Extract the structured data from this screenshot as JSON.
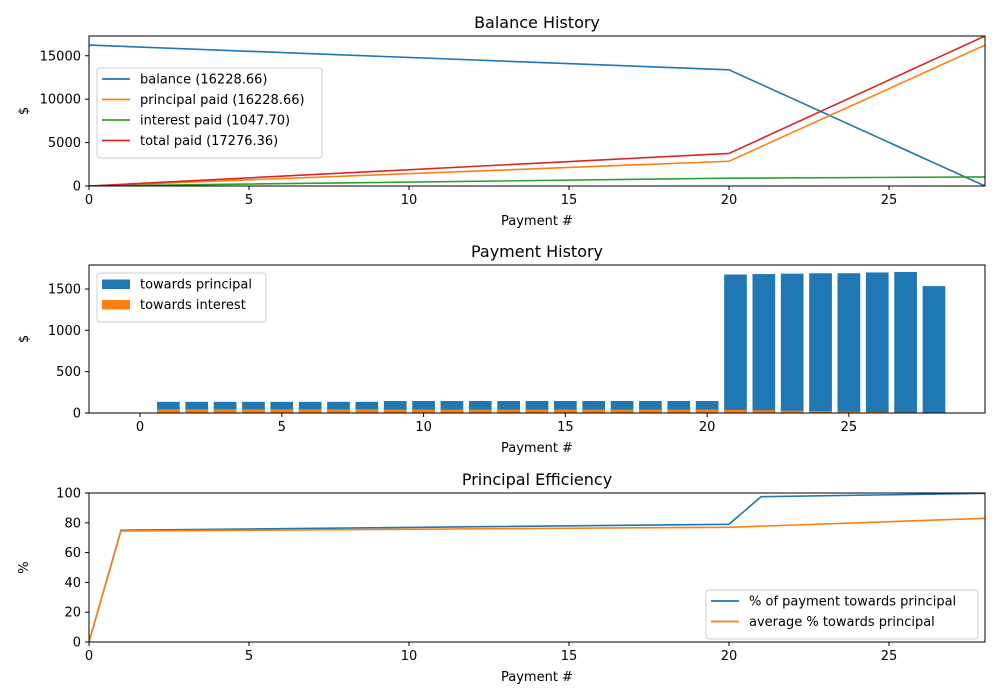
{
  "chart_data": [
    {
      "type": "line",
      "title": "Balance History",
      "xlabel": "Payment #",
      "ylabel": "$",
      "xlim": [
        0,
        28
      ],
      "ylim": [
        0,
        17276.36
      ],
      "xticks": [
        0,
        5,
        10,
        15,
        20,
        25
      ],
      "yticks": [
        0,
        5000,
        10000,
        15000
      ],
      "legend_position": "upper-left-middle",
      "series": [
        {
          "name": "balance (16228.66)",
          "color": "#1f77b4",
          "x": [
            0,
            20,
            28
          ],
          "y": [
            16228.66,
            13380,
            0
          ]
        },
        {
          "name": "principal paid (16228.66)",
          "color": "#ff7f0e",
          "x": [
            0,
            20,
            28
          ],
          "y": [
            0,
            2850,
            16228.66
          ]
        },
        {
          "name": "interest paid (1047.70)",
          "color": "#2ca02c",
          "x": [
            0,
            20,
            28
          ],
          "y": [
            0,
            900,
            1047.7
          ]
        },
        {
          "name": "total paid (17276.36)",
          "color": "#d62728",
          "x": [
            0,
            20,
            28
          ],
          "y": [
            0,
            3750,
            17276.36
          ]
        }
      ]
    },
    {
      "type": "bar",
      "stacked": true,
      "title": "Payment History",
      "xlabel": "Payment #",
      "ylabel": "$",
      "xlim": [
        -1.8,
        29.8
      ],
      "ylim": [
        0,
        1790
      ],
      "xticks": [
        0,
        5,
        10,
        15,
        20,
        25
      ],
      "yticks": [
        0,
        500,
        1000,
        1500
      ],
      "legend_position": "upper-left",
      "x": [
        1,
        2,
        3,
        4,
        5,
        6,
        7,
        8,
        9,
        10,
        11,
        12,
        13,
        14,
        15,
        16,
        17,
        18,
        19,
        20,
        21,
        22,
        23,
        24,
        25,
        26,
        27,
        28
      ],
      "series": [
        {
          "name": "towards principal",
          "color": "#1f77b4",
          "values": [
            135,
            135,
            135,
            135,
            135,
            135,
            135,
            135,
            145,
            145,
            145,
            145,
            145,
            145,
            145,
            145,
            145,
            145,
            145,
            145,
            1675,
            1680,
            1685,
            1690,
            1690,
            1700,
            1705,
            1535
          ]
        },
        {
          "name": "towards interest",
          "color": "#ff7f0e",
          "values": [
            45,
            45,
            45,
            45,
            45,
            45,
            45,
            45,
            42,
            42,
            42,
            42,
            42,
            42,
            42,
            42,
            42,
            42,
            42,
            42,
            38,
            33,
            28,
            22,
            16,
            12,
            8,
            3
          ]
        }
      ]
    },
    {
      "type": "line",
      "title": "Principal Efficiency",
      "xlabel": "Payment #",
      "ylabel": "%",
      "xlim": [
        0,
        28
      ],
      "ylim": [
        0,
        100
      ],
      "xticks": [
        0,
        5,
        10,
        15,
        20,
        25
      ],
      "yticks": [
        0,
        20,
        40,
        60,
        80,
        100
      ],
      "legend_position": "lower-right",
      "series": [
        {
          "name": "% of payment towards principal",
          "color": "#1f77b4",
          "x": [
            0,
            1,
            20,
            21,
            28
          ],
          "y": [
            0,
            75,
            79,
            97.5,
            99.8
          ]
        },
        {
          "name": "average % towards principal",
          "color": "#ff7f0e",
          "x": [
            0,
            1,
            20,
            28
          ],
          "y": [
            0,
            74.5,
            77,
            83
          ]
        }
      ]
    }
  ]
}
